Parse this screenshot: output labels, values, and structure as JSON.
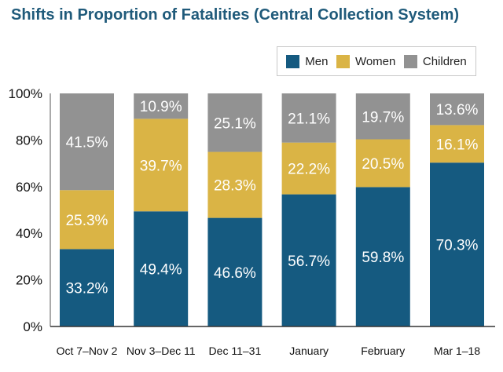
{
  "title": "Shifts in Proportion of Fatalities (Central Collection System)",
  "chart_data": {
    "type": "bar",
    "stacked": true,
    "categories": [
      "Oct 7–Nov 2",
      "Nov 3–Dec 11",
      "Dec 11–31",
      "January",
      "February",
      "Mar 1–18"
    ],
    "series": [
      {
        "name": "Men",
        "color": "#155a80",
        "values": [
          33.2,
          49.4,
          46.6,
          56.7,
          59.8,
          70.3
        ],
        "labels": [
          "33.2%",
          "49.4%",
          "46.6%",
          "56.7%",
          "59.8%",
          "70.3%"
        ]
      },
      {
        "name": "Women",
        "color": "#dab445",
        "values": [
          25.3,
          39.7,
          28.3,
          22.2,
          20.5,
          16.1
        ],
        "labels": [
          "25.3%",
          "39.7%",
          "28.3%",
          "22.2%",
          "20.5%",
          "16.1%"
        ]
      },
      {
        "name": "Children",
        "color": "#929292",
        "values": [
          41.5,
          10.9,
          25.1,
          21.1,
          19.7,
          13.6
        ],
        "labels": [
          "41.5%",
          "10.9%",
          "25.1%",
          "21.1%",
          "19.7%",
          "13.6%"
        ]
      }
    ],
    "ylim": [
      0,
      100
    ],
    "yticks": [
      0,
      20,
      40,
      60,
      80,
      100
    ],
    "ytick_labels": [
      "0%",
      "20%",
      "40%",
      "60%",
      "80%",
      "100%"
    ],
    "legend_position": "top-right",
    "grid": false
  }
}
